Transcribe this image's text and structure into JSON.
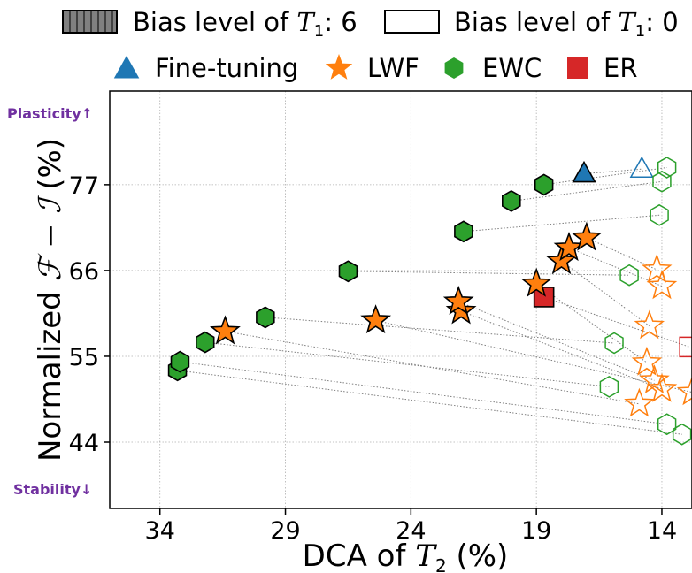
{
  "chart_data": {
    "type": "scatter",
    "xlabel_prefix": "DCA of ",
    "xlabel_math": "T",
    "xlabel_sub": "2",
    "xlabel_suffix": " (%)",
    "ylabel_prefix": "Normalized ",
    "ylabel_math": "ℱ − ℐ",
    "ylabel_suffix": " (%)",
    "x_inverted": true,
    "xlim": [
      36,
      12.8
    ],
    "ylim": [
      35.5,
      89
    ],
    "xticks": [
      34,
      29,
      24,
      19,
      14
    ],
    "yticks": [
      44,
      55,
      66,
      77
    ],
    "grid": true,
    "annotations": {
      "top": "Plasticity↑",
      "bottom": "Stability↓"
    },
    "legend_fill": [
      {
        "label_prefix": "Bias level of ",
        "math": "T",
        "sub": "1",
        "label_suffix": ": 6",
        "style": "filled"
      },
      {
        "label_prefix": "Bias level of ",
        "math": "T",
        "sub": "1",
        "label_suffix": ": 0",
        "style": "hollow"
      }
    ],
    "legend_methods": [
      {
        "label": "Fine-tuning",
        "marker": "triangle",
        "color": "#1f77b4"
      },
      {
        "label": "LWF",
        "marker": "star",
        "color": "#ff7f0e"
      },
      {
        "label": "EWC",
        "marker": "hexagon",
        "color": "#2ca02c"
      },
      {
        "label": "ER",
        "marker": "square",
        "color": "#d62728"
      }
    ],
    "pairs": [
      {
        "method": "Fine-tuning",
        "bias6": [
          17.1,
          78.4
        ],
        "bias0": [
          14.8,
          79.0
        ]
      },
      {
        "method": "ER",
        "bias6": [
          18.7,
          62.6
        ],
        "bias0": [
          12.9,
          56.2
        ]
      },
      {
        "method": "LWF",
        "bias6": [
          17.0,
          70.2
        ],
        "bias0": [
          14.2,
          66.1
        ]
      },
      {
        "method": "LWF",
        "bias6": [
          17.7,
          68.9
        ],
        "bias0": [
          14.0,
          64.0
        ]
      },
      {
        "method": "LWF",
        "bias6": [
          18.0,
          67.2
        ],
        "bias0": [
          14.5,
          58.9
        ]
      },
      {
        "method": "LWF",
        "bias6": [
          19.0,
          64.3
        ],
        "bias0": [
          14.6,
          54.2
        ]
      },
      {
        "method": "LWF",
        "bias6": [
          22.1,
          62.0
        ],
        "bias0": [
          14.3,
          51.9
        ]
      },
      {
        "method": "LWF",
        "bias6": [
          22.0,
          60.8
        ],
        "bias0": [
          14.0,
          50.8
        ]
      },
      {
        "method": "LWF",
        "bias6": [
          25.4,
          59.6
        ],
        "bias0": [
          12.8,
          50.4
        ]
      },
      {
        "method": "LWF",
        "bias6": [
          31.4,
          58.2
        ],
        "bias0": [
          14.9,
          48.9
        ]
      },
      {
        "method": "EWC",
        "bias6": [
          18.7,
          77.0
        ],
        "bias0": [
          13.8,
          79.2
        ]
      },
      {
        "method": "EWC",
        "bias6": [
          20.0,
          74.9
        ],
        "bias0": [
          14.0,
          77.4
        ]
      },
      {
        "method": "EWC",
        "bias6": [
          21.9,
          71.0
        ],
        "bias0": [
          14.1,
          73.1
        ]
      },
      {
        "method": "EWC",
        "bias6": [
          26.5,
          65.9
        ],
        "bias0": [
          15.3,
          65.4
        ]
      },
      {
        "method": "EWC",
        "bias6": [
          29.8,
          60.0
        ],
        "bias0": [
          15.9,
          56.7
        ]
      },
      {
        "method": "EWC",
        "bias6": [
          32.2,
          56.8
        ],
        "bias0": [
          16.1,
          51.1
        ]
      },
      {
        "method": "EWC",
        "bias6": [
          33.2,
          54.3
        ],
        "bias0": [
          13.8,
          46.3
        ]
      },
      {
        "method": "EWC",
        "bias6": [
          33.3,
          53.2
        ],
        "bias0": [
          13.2,
          45.0
        ]
      }
    ]
  }
}
